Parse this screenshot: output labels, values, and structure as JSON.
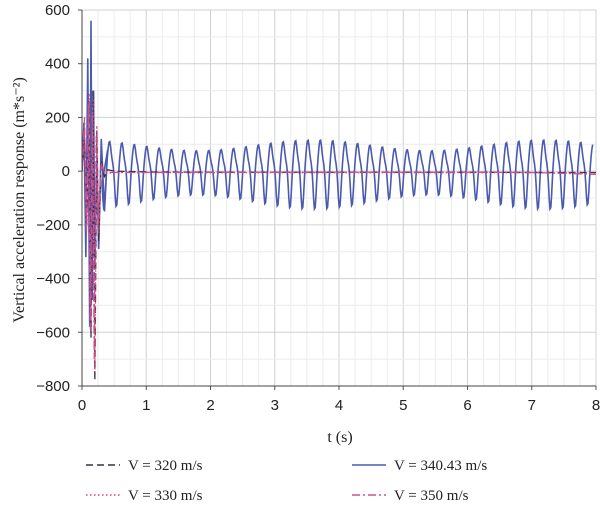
{
  "chart_data": {
    "type": "line",
    "xlabel": "t (s)",
    "ylabel": "Vertical acceleration response (m*s⁻²)",
    "xlim": [
      0,
      8
    ],
    "ylim": [
      -800,
      600
    ],
    "xticks": [
      "0",
      "1",
      "2",
      "3",
      "4",
      "5",
      "6",
      "7",
      "8"
    ],
    "yticks": [
      "600",
      "400",
      "200",
      "0",
      "−200",
      "−400",
      "−600",
      "−800"
    ],
    "grid": true,
    "legend_position": "bottom",
    "series": [
      {
        "name": "V = 320 m/s",
        "color": "#333344",
        "dash": "dashed",
        "points": [
          [
            0,
            0
          ],
          [
            0.04,
            120
          ],
          [
            0.08,
            -150
          ],
          [
            0.11,
            260
          ],
          [
            0.14,
            -620
          ],
          [
            0.17,
            300
          ],
          [
            0.2,
            -780
          ],
          [
            0.23,
            150
          ],
          [
            0.26,
            -260
          ],
          [
            0.3,
            40
          ],
          [
            0.35,
            -20
          ],
          [
            0.4,
            5
          ],
          [
            0.5,
            0
          ],
          [
            1,
            -3
          ],
          [
            2,
            -4
          ],
          [
            3,
            -4
          ],
          [
            4,
            -4
          ],
          [
            5,
            -4
          ],
          [
            6,
            -4
          ],
          [
            7,
            -5
          ],
          [
            8,
            -5
          ]
        ]
      },
      {
        "name": "V = 330 m/s",
        "color": "#e04070",
        "dash": "dotted",
        "points": [
          [
            0,
            0
          ],
          [
            0.04,
            160
          ],
          [
            0.08,
            -200
          ],
          [
            0.11,
            290
          ],
          [
            0.14,
            -560
          ],
          [
            0.17,
            270
          ],
          [
            0.2,
            -740
          ],
          [
            0.23,
            170
          ],
          [
            0.26,
            -230
          ],
          [
            0.3,
            30
          ],
          [
            0.35,
            -10
          ],
          [
            0.5,
            -5
          ],
          [
            1,
            -5
          ],
          [
            2,
            -6
          ],
          [
            3,
            -6
          ],
          [
            4,
            -6
          ],
          [
            5,
            -6
          ],
          [
            6,
            -6
          ],
          [
            7,
            -6
          ],
          [
            8,
            -8
          ]
        ]
      },
      {
        "name": "V = 340.43 m/s",
        "color": "#4a5ab0",
        "dash": "solid",
        "oscillation": {
          "start": 0.3,
          "end": 7.95,
          "period": 0.193,
          "amplitude": 138,
          "bias": 5,
          "beat_period": 3.6
        },
        "points": [
          [
            0,
            0
          ],
          [
            0.03,
            180
          ],
          [
            0.06,
            -320
          ],
          [
            0.09,
            420
          ],
          [
            0.12,
            -580
          ],
          [
            0.14,
            560
          ],
          [
            0.16,
            -480
          ],
          [
            0.18,
            300
          ],
          [
            0.2,
            -360
          ],
          [
            0.23,
            40
          ],
          [
            0.26,
            -290
          ],
          [
            0.3,
            120
          ],
          [
            0.35,
            -150
          ],
          [
            0.4,
            80
          ]
        ]
      },
      {
        "name": "V = 350 m/s",
        "color": "#d0508e",
        "dash": "dashdot",
        "points": [
          [
            0,
            0
          ],
          [
            0.04,
            200
          ],
          [
            0.07,
            -240
          ],
          [
            0.1,
            250
          ],
          [
            0.13,
            -590
          ],
          [
            0.16,
            220
          ],
          [
            0.19,
            -700
          ],
          [
            0.22,
            130
          ],
          [
            0.25,
            -200
          ],
          [
            0.3,
            20
          ],
          [
            0.4,
            -5
          ],
          [
            1,
            -5
          ],
          [
            2,
            -4
          ],
          [
            3,
            -4
          ],
          [
            4,
            -4
          ],
          [
            5,
            -4
          ],
          [
            6,
            -4
          ],
          [
            7,
            -5
          ],
          [
            8,
            -12
          ]
        ]
      }
    ]
  }
}
